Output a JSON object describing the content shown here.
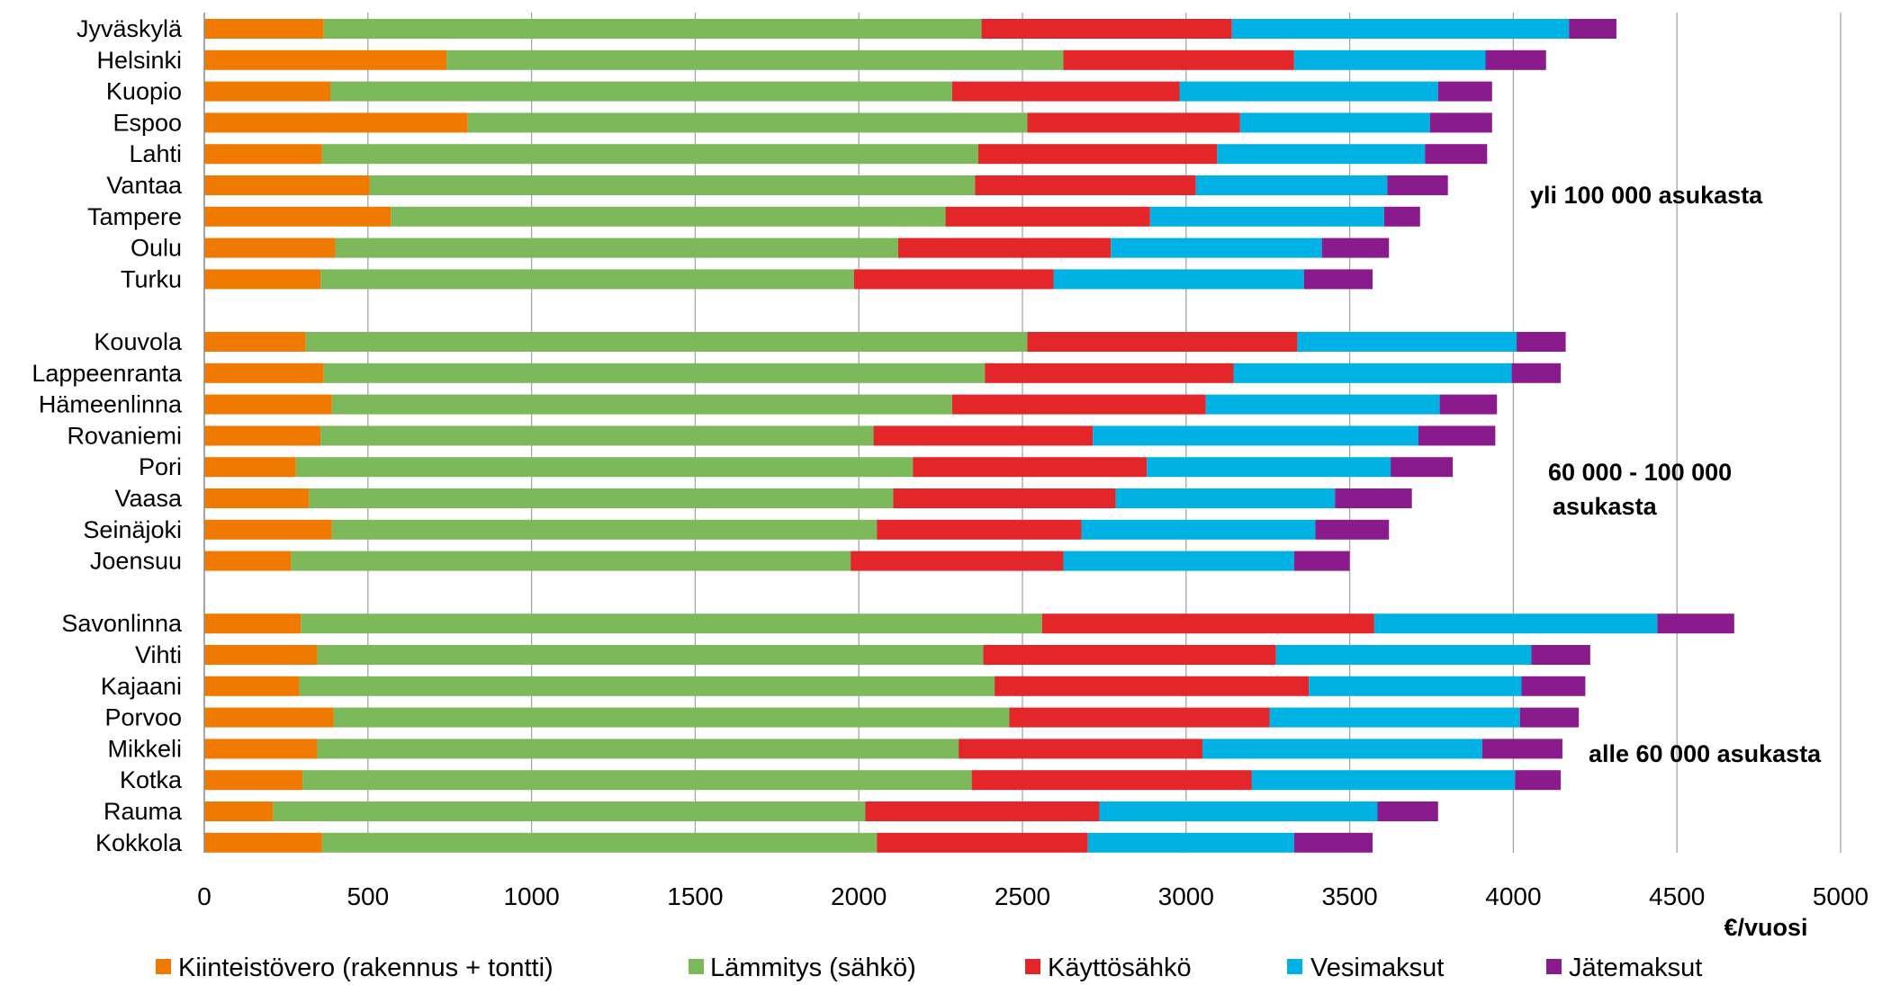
{
  "chart_data": {
    "type": "bar",
    "orientation": "horizontal",
    "stacked": true,
    "xlabel": "€/vuosi",
    "xlim": [
      0,
      5000
    ],
    "xticks": [
      0,
      500,
      1000,
      1500,
      2000,
      2500,
      3000,
      3500,
      4000,
      4500,
      5000
    ],
    "grid": true,
    "legend_position": "bottom",
    "series": [
      {
        "name": "Kiinteistövero (rakennus + tontti)",
        "color": "#F07A00"
      },
      {
        "name": "Lämmitys (sähkö)",
        "color": "#7DB95A"
      },
      {
        "name": "Käyttösähkö",
        "color": "#E3262A"
      },
      {
        "name": "Vesimaksut",
        "color": "#00B2E3"
      },
      {
        "name": "Jätemaksut",
        "color": "#8A1B8C"
      }
    ],
    "groups": [
      {
        "label_lines": [
          "yli 100 000 asukasta"
        ],
        "rows": [
          {
            "name": "Jyväskylä",
            "values": [
              365,
              2010,
              765,
              1030,
              145
            ]
          },
          {
            "name": "Helsinki",
            "values": [
              740,
              1885,
              705,
              585,
              185
            ]
          },
          {
            "name": "Kuopio",
            "values": [
              385,
              1900,
              695,
              790,
              165
            ]
          },
          {
            "name": "Espoo",
            "values": [
              805,
              1710,
              650,
              580,
              190
            ]
          },
          {
            "name": "Lahti",
            "values": [
              360,
              2005,
              730,
              635,
              190
            ]
          },
          {
            "name": "Vantaa",
            "values": [
              505,
              1850,
              675,
              585,
              185
            ]
          },
          {
            "name": "Tampere",
            "values": [
              570,
              1695,
              625,
              715,
              110
            ]
          },
          {
            "name": "Oulu",
            "values": [
              400,
              1720,
              650,
              645,
              205
            ]
          },
          {
            "name": "Turku",
            "values": [
              355,
              1630,
              610,
              765,
              210
            ]
          }
        ]
      },
      {
        "label_lines": [
          "60 000 - 100 000",
          "asukasta"
        ],
        "rows": [
          {
            "name": "Kouvola",
            "values": [
              310,
              2205,
              825,
              670,
              150
            ]
          },
          {
            "name": "Lappeenranta",
            "values": [
              365,
              2020,
              760,
              850,
              150
            ]
          },
          {
            "name": "Hämeenlinna",
            "values": [
              390,
              1895,
              775,
              715,
              175
            ]
          },
          {
            "name": "Rovaniemi",
            "values": [
              355,
              1690,
              670,
              995,
              235
            ]
          },
          {
            "name": "Pori",
            "values": [
              280,
              1885,
              715,
              745,
              190
            ]
          },
          {
            "name": "Vaasa",
            "values": [
              320,
              1785,
              680,
              670,
              235
            ]
          },
          {
            "name": "Seinäjoki",
            "values": [
              390,
              1665,
              625,
              715,
              225
            ]
          },
          {
            "name": "Joensuu",
            "values": [
              265,
              1710,
              650,
              705,
              170
            ]
          }
        ]
      },
      {
        "label_lines": [
          "alle 60 000 asukasta"
        ],
        "rows": [
          {
            "name": "Savonlinna",
            "values": [
              295,
              2265,
              1015,
              865,
              235
            ]
          },
          {
            "name": "Vihti",
            "values": [
              345,
              2035,
              895,
              780,
              180
            ]
          },
          {
            "name": "Kajaani",
            "values": [
              290,
              2125,
              960,
              650,
              195
            ]
          },
          {
            "name": "Porvoo",
            "values": [
              395,
              2065,
              795,
              765,
              180
            ]
          },
          {
            "name": "Mikkeli",
            "values": [
              345,
              1960,
              745,
              855,
              245
            ]
          },
          {
            "name": "Kotka",
            "values": [
              300,
              2045,
              855,
              805,
              140
            ]
          },
          {
            "name": "Rauma",
            "values": [
              210,
              1810,
              715,
              850,
              185
            ]
          },
          {
            "name": "Kokkola",
            "values": [
              360,
              1695,
              645,
              630,
              240
            ]
          }
        ]
      }
    ]
  }
}
